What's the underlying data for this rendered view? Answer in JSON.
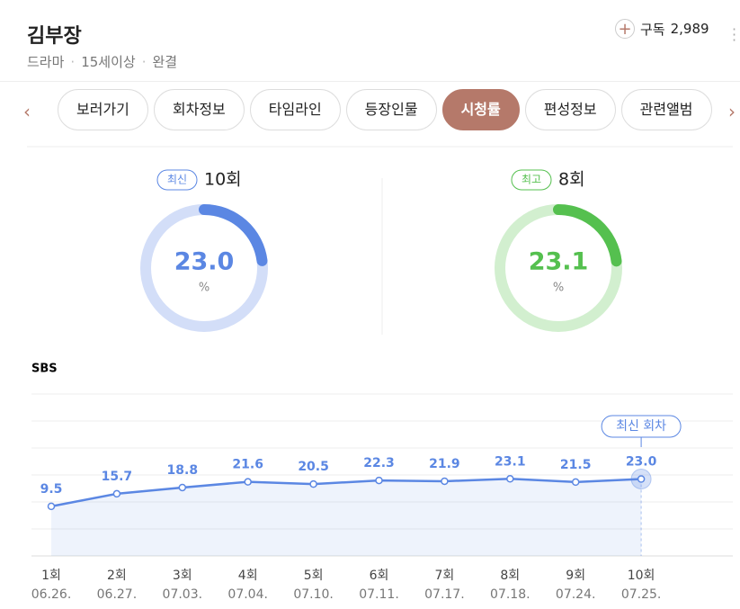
{
  "header": {
    "title": "김부장",
    "meta": [
      "드라마",
      "15세이상",
      "완결"
    ],
    "subscribe": "구독",
    "subscribers": "2,989"
  },
  "tabs": {
    "items": [
      "보러가기",
      "회차정보",
      "타임라인",
      "등장인물",
      "시청률",
      "편성정보",
      "관련앨범"
    ],
    "active": 4
  },
  "summary": [
    {
      "badge": "최신",
      "episode": "10회",
      "value": 23,
      "value_label": "23.0",
      "unit": "%",
      "max": 100,
      "color": "#5b87e3",
      "track": "#d3def8"
    },
    {
      "badge": "최고",
      "episode": "8회",
      "value": 23.1,
      "unit": "%",
      "max": 100,
      "color": "#55c04f",
      "track": "#d2efcf"
    }
  ],
  "chart_data": {
    "type": "line",
    "title": "SBS",
    "categories": [
      "1회",
      "2회",
      "3회",
      "4회",
      "5회",
      "6회",
      "7회",
      "8회",
      "9회",
      "10회"
    ],
    "dates": [
      "06.26.",
      "06.27.",
      "07.03.",
      "07.04.",
      "07.10.",
      "07.11.",
      "07.17.",
      "07.18.",
      "07.24.",
      "07.25."
    ],
    "series": [
      {
        "name": "SBS",
        "color": "#5b87e3",
        "values": [
          9.5,
          15.7,
          18.8,
          21.6,
          20.5,
          22.3,
          21.9,
          23.1,
          21.5,
          23
        ],
        "value_labels": [
          "9.5",
          "15.7",
          "18.8",
          "21.6",
          "20.5",
          "22.3",
          "21.9",
          "23.1",
          "21.5",
          "23.0"
        ]
      }
    ],
    "annotation": "최신 회차",
    "ylim": [
      -15,
      65
    ],
    "grid": true
  }
}
